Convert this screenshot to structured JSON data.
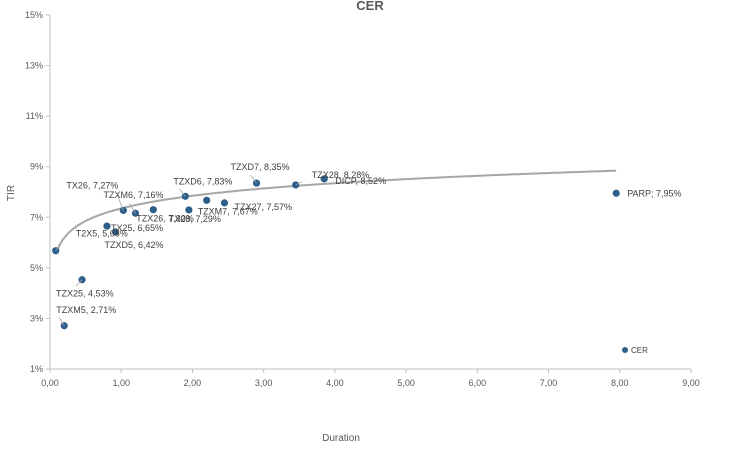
{
  "chart_data": {
    "type": "scatter",
    "title": "CER",
    "xlabel": "Duration",
    "ylabel": "TIR",
    "xlim": [
      0,
      9
    ],
    "ylim": [
      1,
      15
    ],
    "x_ticks": [
      "0,00",
      "1,00",
      "2,00",
      "3,00",
      "4,00",
      "5,00",
      "6,00",
      "7,00",
      "8,00",
      "9,00"
    ],
    "y_ticks": [
      "1%",
      "3%",
      "5%",
      "7%",
      "9%",
      "11%",
      "13%",
      "15%"
    ],
    "grid": false,
    "legend": {
      "position": "bottom-right",
      "entries": [
        "CER"
      ]
    },
    "marker_color": "#2E5F8A",
    "trend_color": "#A6A6A6",
    "trendline": {
      "type": "logarithmic",
      "x_range": [
        0.08,
        7.95
      ],
      "a": 7.35,
      "b": 0.72
    },
    "series": [
      {
        "name": "CER",
        "points": [
          {
            "label": "TZXM5, 2,71%",
            "x": 0.2,
            "y": 2.71
          },
          {
            "label": "TZX25, 4,53%",
            "x": 0.45,
            "y": 4.53
          },
          {
            "label": "T2X5, 5,68%",
            "x": 0.08,
            "y": 5.68
          },
          {
            "label": "TX25, 6,65%",
            "x": 0.8,
            "y": 6.65
          },
          {
            "label": "TZXD5, 6,42%",
            "x": 0.92,
            "y": 6.42
          },
          {
            "label": "TX26, 7,27%",
            "x": 1.03,
            "y": 7.27
          },
          {
            "label": "TZXM6, 7,16%",
            "x": 1.2,
            "y": 7.16
          },
          {
            "label": "TZX26, 7,30%",
            "x": 1.45,
            "y": 7.3
          },
          {
            "label": "TX28, 7,29%",
            "x": 1.95,
            "y": 7.29
          },
          {
            "label": "TZXD6, 7,83%",
            "x": 1.9,
            "y": 7.83
          },
          {
            "label": "TZXM7, 7,67%",
            "x": 2.2,
            "y": 7.67
          },
          {
            "label": "TZX27, 7,57%",
            "x": 2.45,
            "y": 7.57
          },
          {
            "label": "TZXD7, 8,35%",
            "x": 2.9,
            "y": 8.35
          },
          {
            "label": "TZX28, 8,28%",
            "x": 3.45,
            "y": 8.28
          },
          {
            "label": "DICP, 8,52%",
            "x": 3.85,
            "y": 8.52
          },
          {
            "label": "PARP; 7,95%",
            "x": 7.95,
            "y": 7.95
          }
        ]
      }
    ]
  }
}
